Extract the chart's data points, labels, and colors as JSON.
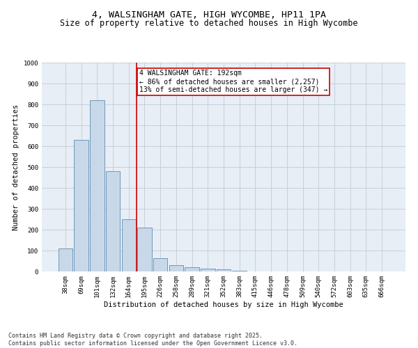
{
  "title_line1": "4, WALSINGHAM GATE, HIGH WYCOMBE, HP11 1PA",
  "title_line2": "Size of property relative to detached houses in High Wycombe",
  "xlabel": "Distribution of detached houses by size in High Wycombe",
  "ylabel": "Number of detached properties",
  "categories": [
    "38sqm",
    "69sqm",
    "101sqm",
    "132sqm",
    "164sqm",
    "195sqm",
    "226sqm",
    "258sqm",
    "289sqm",
    "321sqm",
    "352sqm",
    "383sqm",
    "415sqm",
    "446sqm",
    "478sqm",
    "509sqm",
    "540sqm",
    "572sqm",
    "603sqm",
    "635sqm",
    "666sqm"
  ],
  "values": [
    110,
    630,
    820,
    480,
    250,
    210,
    65,
    30,
    20,
    15,
    10,
    5,
    0,
    0,
    0,
    0,
    0,
    0,
    0,
    0,
    0
  ],
  "bar_color": "#c8d8e8",
  "bar_edge_color": "#5b8db0",
  "highlight_index": 5,
  "highlight_line_color": "#cc0000",
  "annotation_text": "4 WALSINGHAM GATE: 192sqm\n← 86% of detached houses are smaller (2,257)\n13% of semi-detached houses are larger (347) →",
  "annotation_box_color": "#ffffff",
  "annotation_box_edge": "#cc0000",
  "ylim": [
    0,
    1000
  ],
  "yticks": [
    0,
    100,
    200,
    300,
    400,
    500,
    600,
    700,
    800,
    900,
    1000
  ],
  "grid_color": "#c0ccd8",
  "background_color": "#e8eef5",
  "footer_text": "Contains HM Land Registry data © Crown copyright and database right 2025.\nContains public sector information licensed under the Open Government Licence v3.0.",
  "title_fontsize": 9.5,
  "subtitle_fontsize": 8.5,
  "axis_label_fontsize": 7.5,
  "tick_fontsize": 6.5,
  "annotation_fontsize": 7,
  "footer_fontsize": 6
}
